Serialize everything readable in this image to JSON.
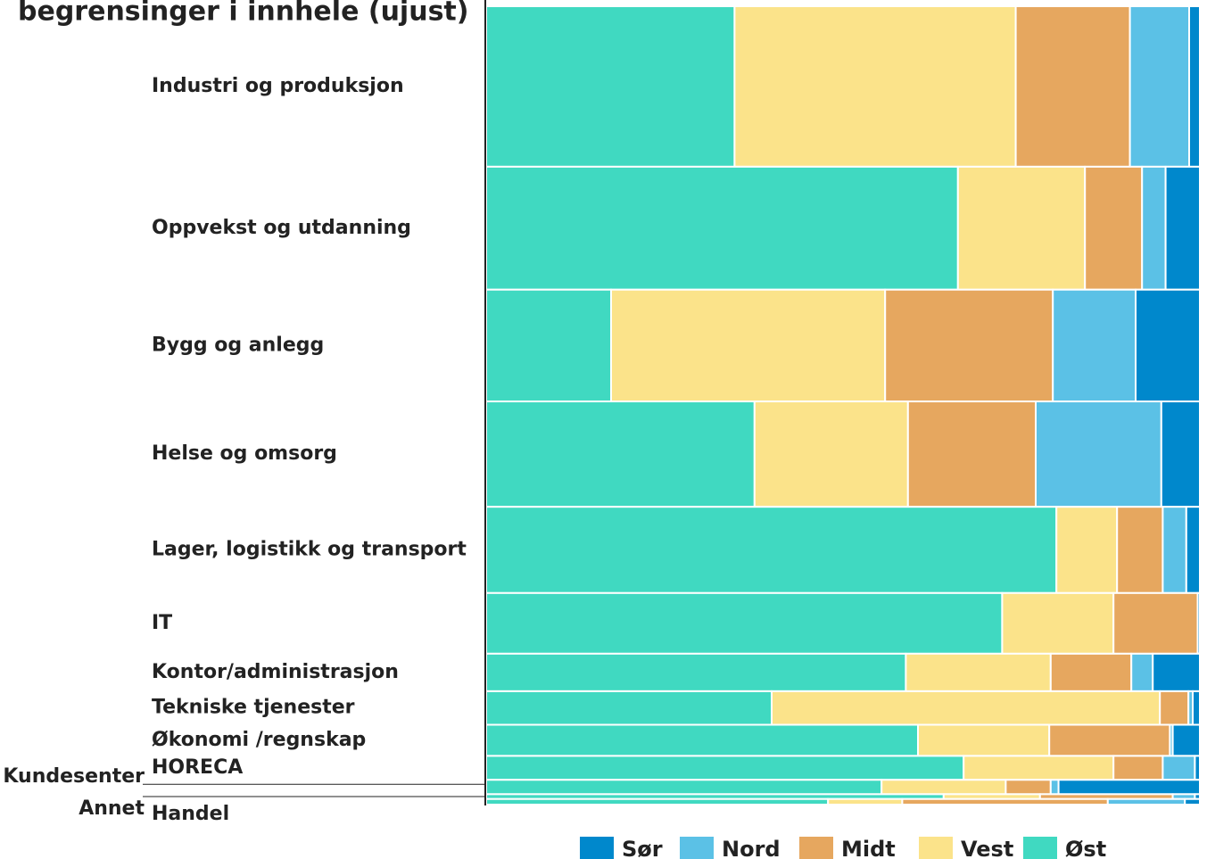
{
  "chart_data": {
    "type": "marimekko",
    "title": "begrensinger i innhele (ujust)",
    "categories": [
      "Industri og produksjon",
      "Oppvekst og utdanning",
      "Bygg og anlegg",
      "Helse og omsorg",
      "Lager, logistikk og transport",
      "IT",
      "Kontor/administrasjon",
      "Tekniske tjenester",
      "Økonomi /regnskap",
      "HORECA",
      "Kundesenter",
      "Annet",
      "Handel"
    ],
    "shares": [
      20.1,
      15.4,
      14.0,
      13.2,
      10.8,
      7.6,
      4.7,
      4.2,
      3.9,
      3.0,
      1.8,
      0.6,
      0.7
    ],
    "xlim": [
      0,
      100
    ],
    "series": [
      {
        "name": "Øst",
        "color": "#40d9c1",
        "values": [
          34.8,
          66.1,
          17.5,
          37.6,
          79.9,
          72.3,
          58.8,
          40.0,
          60.5,
          66.9,
          55.4,
          64.1,
          47.9
        ]
      },
      {
        "name": "Vest",
        "color": "#fbe38a",
        "values": [
          39.4,
          17.8,
          38.4,
          21.5,
          8.5,
          15.6,
          20.3,
          54.4,
          18.4,
          21.0,
          17.4,
          13.5,
          10.4
        ]
      },
      {
        "name": "Midt",
        "color": "#e6a75f",
        "values": [
          16.0,
          8.0,
          23.5,
          17.9,
          6.4,
          11.8,
          11.3,
          4.0,
          16.9,
          6.9,
          6.3,
          18.6,
          28.8
        ]
      },
      {
        "name": "Nord",
        "color": "#5bc1e6",
        "values": [
          8.3,
          3.3,
          11.6,
          17.6,
          3.3,
          0.0,
          3.0,
          0.6,
          0.4,
          4.5,
          1.1,
          3.1,
          10.8
        ]
      },
      {
        "name": "Sør",
        "color": "#0088cc",
        "values": [
          1.5,
          4.8,
          9.0,
          5.4,
          1.9,
          0.3,
          6.6,
          1.0,
          3.8,
          0.7,
          19.8,
          0.7,
          2.1
        ]
      }
    ]
  }
}
